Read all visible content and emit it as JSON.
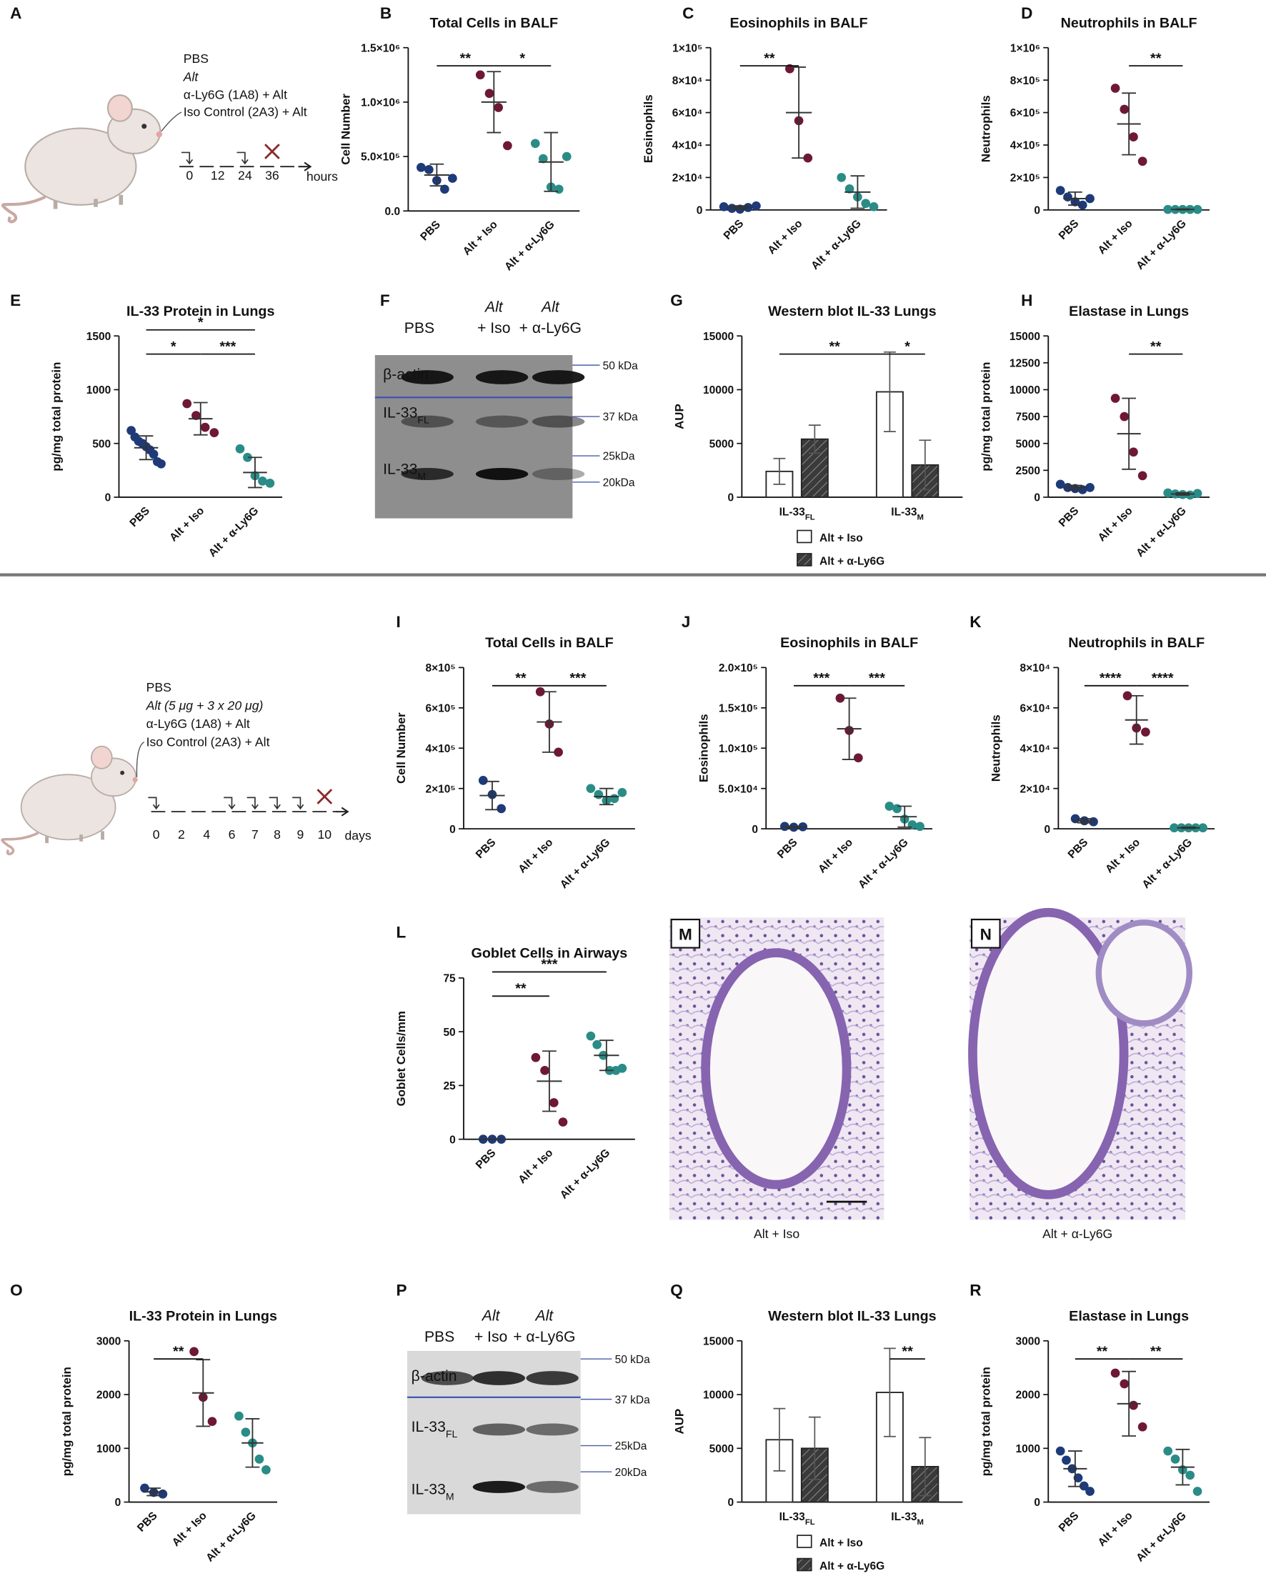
{
  "chart_data": [
    {
      "type": "dotplot",
      "label": "B",
      "title": "Total Cells in BALF",
      "ylabel": "Cell Number",
      "ylim": [
        0,
        1500000
      ],
      "yticks": [
        {
          "value": 0,
          "label": "0.0"
        },
        {
          "value": 500000,
          "label": "5.0×10⁵"
        },
        {
          "value": 1000000,
          "label": "1.0×10⁶"
        },
        {
          "value": 1500000,
          "label": "1.5×10⁶"
        }
      ],
      "series": [
        {
          "name": "PBS",
          "color": "#1e3a78",
          "values": [
            400000,
            380000,
            280000,
            200000,
            300000
          ],
          "mean": 330000,
          "sd": 100000
        },
        {
          "name": "Alt + Iso",
          "color": "#6e1836",
          "values": [
            1250000,
            1080000,
            950000,
            600000
          ],
          "mean": 1000000,
          "sd": 280000
        },
        {
          "name": "Alt + α-Ly6G",
          "color": "#2a8c86",
          "values": [
            620000,
            480000,
            220000,
            200000,
            500000
          ],
          "mean": 450000,
          "sd": 270000
        }
      ],
      "annotations": [
        {
          "text": "**",
          "pair": [
            0,
            1
          ]
        },
        {
          "text": "*",
          "pair": [
            1,
            2
          ]
        }
      ]
    },
    {
      "type": "dotplot",
      "label": "C",
      "title": "Eosinophils in BALF",
      "ylabel": "Eosinophils",
      "ylim": [
        0,
        100000
      ],
      "yticks": [
        0,
        {
          "value": 20000,
          "label": "2×10⁴"
        },
        {
          "value": 40000,
          "label": "4×10⁴"
        },
        {
          "value": 60000,
          "label": "6×10⁴"
        },
        {
          "value": 80000,
          "label": "8×10⁴"
        },
        {
          "value": 100000,
          "label": "1×10⁵"
        }
      ],
      "series": [
        {
          "name": "PBS",
          "color": "#1e3a78",
          "values": [
            2000,
            1000,
            500,
            1500,
            2500
          ],
          "mean": 1500,
          "sd": 1000
        },
        {
          "name": "Alt + Iso",
          "color": "#6e1836",
          "values": [
            87000,
            55000,
            32000
          ],
          "mean": 60000,
          "sd": 28000
        },
        {
          "name": "Alt + α-Ly6G",
          "color": "#2a8c86",
          "values": [
            20000,
            13000,
            8000,
            4000,
            2000
          ],
          "mean": 11000,
          "sd": 10000
        }
      ],
      "annotations": [
        {
          "text": "**",
          "pair": [
            0,
            1
          ]
        }
      ]
    },
    {
      "type": "dotplot",
      "label": "D",
      "title": "Neutrophils in BALF",
      "ylabel": "Neutrophils",
      "ylim": [
        0,
        1000000
      ],
      "yticks": [
        0,
        {
          "value": 200000,
          "label": "2×10⁵"
        },
        {
          "value": 400000,
          "label": "4×10⁵"
        },
        {
          "value": 600000,
          "label": "6×10⁵"
        },
        {
          "value": 800000,
          "label": "8×10⁵"
        },
        {
          "value": 1000000,
          "label": "1×10⁶"
        }
      ],
      "series": [
        {
          "name": "PBS",
          "color": "#1e3a78",
          "values": [
            120000,
            80000,
            50000,
            30000,
            70000
          ],
          "mean": 70000,
          "sd": 40000
        },
        {
          "name": "Alt + Iso",
          "color": "#6e1836",
          "values": [
            750000,
            620000,
            450000,
            300000
          ],
          "mean": 530000,
          "sd": 190000
        },
        {
          "name": "Alt + α-Ly6G",
          "color": "#2a8c86",
          "values": [
            3000,
            3000,
            3000,
            3000,
            3000
          ],
          "mean": 3000,
          "sd": 2000
        }
      ],
      "annotations": [
        {
          "text": "**",
          "pair": [
            1,
            2
          ]
        }
      ]
    },
    {
      "type": "dotplot",
      "label": "E",
      "title": "IL-33 Protein in Lungs",
      "ylabel": "pg/mg total protein",
      "ylim": [
        0,
        1500
      ],
      "yticks": [
        0,
        500,
        1000,
        1500
      ],
      "series": [
        {
          "name": "PBS",
          "color": "#1e3a78",
          "values": [
            620,
            560,
            520,
            500,
            470,
            440,
            400,
            330,
            310
          ],
          "mean": 460,
          "sd": 110
        },
        {
          "name": "Alt + Iso",
          "color": "#6e1836",
          "values": [
            870,
            760,
            650,
            600
          ],
          "mean": 730,
          "sd": 150
        },
        {
          "name": "Alt + α-Ly6G",
          "color": "#2a8c86",
          "values": [
            450,
            370,
            200,
            150,
            130
          ],
          "mean": 230,
          "sd": 140
        }
      ],
      "annotations": [
        {
          "text": "*",
          "pair": [
            0,
            1
          ]
        },
        {
          "text": "***",
          "pair": [
            1,
            2
          ]
        },
        {
          "text": "*",
          "pair": [
            0,
            2
          ]
        }
      ]
    },
    {
      "type": "bar",
      "label": "G",
      "title": "Western blot IL-33 Lungs",
      "ylabel": "AUP",
      "ylim": [
        0,
        15000
      ],
      "yticks": [
        0,
        5000,
        10000,
        15000
      ],
      "categories": [
        "IL-33",
        "IL-33"
      ],
      "category_subscripts": [
        "FL",
        "M"
      ],
      "series": [
        {
          "name": "Alt + Iso",
          "color": "#ffffff",
          "values": [
            2400,
            9800
          ],
          "errors": [
            1200,
            3700
          ]
        },
        {
          "name": "Alt + α-Ly6G",
          "color": "#3a3a3a",
          "pattern": "hatched",
          "values": [
            5400,
            3000
          ],
          "errors": [
            1300,
            2300
          ]
        }
      ],
      "annotations": [
        {
          "text": "**",
          "pair": [
            [
              0,
              0
            ],
            [
              0,
              1
            ]
          ]
        },
        {
          "text": "*",
          "pair": [
            [
              0,
              1
            ],
            [
              1,
              1
            ]
          ]
        }
      ]
    },
    {
      "type": "dotplot",
      "label": "H",
      "title": "Elastase in Lungs",
      "ylabel": "pg/mg total protein",
      "ylim": [
        0,
        15000
      ],
      "yticks": [
        0,
        2500,
        5000,
        7500,
        10000,
        12500,
        15000
      ],
      "series": [
        {
          "name": "PBS",
          "color": "#1e3a78",
          "values": [
            1200,
            900,
            800,
            700,
            900
          ],
          "mean": 900,
          "sd": 200
        },
        {
          "name": "Alt + Iso",
          "color": "#6e1836",
          "values": [
            9200,
            7500,
            4200,
            2000
          ],
          "mean": 5900,
          "sd": 3300
        },
        {
          "name": "Alt + α-Ly6G",
          "color": "#2a8c86",
          "values": [
            400,
            300,
            250,
            200,
            350
          ],
          "mean": 300,
          "sd": 100
        }
      ],
      "annotations": [
        {
          "text": "**",
          "pair": [
            1,
            2
          ]
        }
      ]
    },
    {
      "type": "dotplot",
      "label": "I",
      "title": "Total Cells in BALF",
      "ylabel": "Cell Number",
      "ylim": [
        0,
        800000
      ],
      "yticks": [
        0,
        {
          "value": 200000,
          "label": "2×10⁵"
        },
        {
          "value": 400000,
          "label": "4×10⁵"
        },
        {
          "value": 600000,
          "label": "6×10⁵"
        },
        {
          "value": 800000,
          "label": "8×10⁵"
        }
      ],
      "series": [
        {
          "name": "PBS",
          "color": "#1e3a78",
          "values": [
            240000,
            170000,
            100000
          ],
          "mean": 165000,
          "sd": 70000
        },
        {
          "name": "Alt + Iso",
          "color": "#6e1836",
          "values": [
            680000,
            520000,
            380000
          ],
          "mean": 530000,
          "sd": 150000
        },
        {
          "name": "Alt + α-Ly6G",
          "color": "#2a8c86",
          "values": [
            200000,
            170000,
            140000,
            150000,
            180000
          ],
          "mean": 160000,
          "sd": 40000
        }
      ],
      "annotations": [
        {
          "text": "**",
          "pair": [
            0,
            1
          ]
        },
        {
          "text": "***",
          "pair": [
            1,
            2
          ]
        }
      ]
    },
    {
      "type": "dotplot",
      "label": "J",
      "title": "Eosinophils in BALF",
      "ylabel": "Eosinophils",
      "ylim": [
        0,
        200000
      ],
      "yticks": [
        0,
        {
          "value": 50000,
          "label": "5.0×10⁴"
        },
        {
          "value": 100000,
          "label": "1.0×10⁵"
        },
        {
          "value": 150000,
          "label": "1.5×10⁵"
        },
        {
          "value": 200000,
          "label": "2.0×10⁵"
        }
      ],
      "series": [
        {
          "name": "PBS",
          "color": "#1e3a78",
          "values": [
            3000,
            2000,
            2500
          ],
          "mean": 2000,
          "sd": 1000
        },
        {
          "name": "Alt + Iso",
          "color": "#6e1836",
          "values": [
            162000,
            122000,
            88000
          ],
          "mean": 124000,
          "sd": 38000
        },
        {
          "name": "Alt + α-Ly6G",
          "color": "#2a8c86",
          "values": [
            28000,
            25000,
            12000,
            5000,
            3000
          ],
          "mean": 15000,
          "sd": 13000
        }
      ],
      "annotations": [
        {
          "text": "***",
          "pair": [
            0,
            1
          ]
        },
        {
          "text": "***",
          "pair": [
            1,
            2
          ]
        }
      ]
    },
    {
      "type": "dotplot",
      "label": "K",
      "title": "Neutrophils in BALF",
      "ylabel": "Neutrophils",
      "ylim": [
        0,
        80000
      ],
      "yticks": [
        0,
        {
          "value": 20000,
          "label": "2×10⁴"
        },
        {
          "value": 40000,
          "label": "4×10⁴"
        },
        {
          "value": 60000,
          "label": "6×10⁴"
        },
        {
          "value": 80000,
          "label": "8×10⁴"
        }
      ],
      "series": [
        {
          "name": "PBS",
          "color": "#1e3a78",
          "values": [
            5000,
            4000,
            3500
          ],
          "mean": 4000,
          "sd": 1000
        },
        {
          "name": "Alt + Iso",
          "color": "#6e1836",
          "values": [
            66000,
            50000,
            48000
          ],
          "mean": 54000,
          "sd": 12000
        },
        {
          "name": "Alt + α-Ly6G",
          "color": "#2a8c86",
          "values": [
            500,
            500,
            500,
            500,
            500
          ],
          "mean": 500,
          "sd": 300
        }
      ],
      "annotations": [
        {
          "text": "****",
          "pair": [
            0,
            1
          ]
        },
        {
          "text": "****",
          "pair": [
            1,
            2
          ]
        }
      ]
    },
    {
      "type": "dotplot",
      "label": "L",
      "title": "Goblet Cells in Airways",
      "ylabel": "Goblet Cells/mm",
      "ylim": [
        0,
        75
      ],
      "yticks": [
        0,
        25,
        50,
        75
      ],
      "series": [
        {
          "name": "PBS",
          "color": "#1e3a78",
          "values": [
            0,
            0,
            0
          ],
          "mean": 0,
          "sd": 0
        },
        {
          "name": "Alt + Iso",
          "color": "#6e1836",
          "values": [
            38,
            32,
            17,
            8
          ],
          "mean": 27,
          "sd": 14
        },
        {
          "name": "Alt + α-Ly6G",
          "color": "#2a8c86",
          "values": [
            48,
            44,
            39,
            32,
            32,
            33
          ],
          "mean": 39,
          "sd": 7
        }
      ],
      "annotations": [
        {
          "text": "**",
          "pair": [
            0,
            1
          ]
        },
        {
          "text": "***",
          "pair": [
            0,
            2
          ]
        }
      ]
    },
    {
      "type": "dotplot",
      "label": "O",
      "title": "IL-33 Protein in Lungs",
      "ylabel": "pg/mg total protein",
      "ylim": [
        0,
        3000
      ],
      "yticks": [
        0,
        1000,
        2000,
        3000
      ],
      "series": [
        {
          "name": "PBS",
          "color": "#1e3a78",
          "values": [
            260,
            180,
            150
          ],
          "mean": 190,
          "sd": 70
        },
        {
          "name": "Alt + Iso",
          "color": "#6e1836",
          "values": [
            2800,
            1950,
            1500
          ],
          "mean": 2030,
          "sd": 620
        },
        {
          "name": "Alt + α-Ly6G",
          "color": "#2a8c86",
          "values": [
            1600,
            1300,
            1100,
            800,
            600
          ],
          "mean": 1100,
          "sd": 450
        }
      ],
      "annotations": [
        {
          "text": "**",
          "pair": [
            0,
            1
          ]
        }
      ]
    },
    {
      "type": "bar",
      "label": "Q",
      "title": "Western blot IL-33 Lungs",
      "ylabel": "AUP",
      "ylim": [
        0,
        15000
      ],
      "yticks": [
        0,
        5000,
        10000,
        15000
      ],
      "categories": [
        "IL-33",
        "IL-33"
      ],
      "category_subscripts": [
        "FL",
        "M"
      ],
      "series": [
        {
          "name": "Alt + Iso",
          "color": "#ffffff",
          "values": [
            5800,
            10200
          ],
          "errors": [
            2900,
            4100
          ]
        },
        {
          "name": "Alt + α-Ly6G",
          "color": "#3a3a3a",
          "pattern": "hatched",
          "values": [
            5000,
            3300
          ],
          "errors": [
            2900,
            2700
          ]
        }
      ],
      "annotations": [
        {
          "text": "**",
          "pair": [
            [
              0,
              1
            ],
            [
              1,
              1
            ]
          ]
        }
      ]
    },
    {
      "type": "dotplot",
      "label": "R",
      "title": "Elastase in Lungs",
      "ylabel": "pg/mg total protein",
      "ylim": [
        0,
        3000
      ],
      "yticks": [
        0,
        1000,
        2000,
        3000
      ],
      "series": [
        {
          "name": "PBS",
          "color": "#1e3a78",
          "values": [
            950,
            780,
            620,
            450,
            300,
            200
          ],
          "mean": 620,
          "sd": 330
        },
        {
          "name": "Alt + Iso",
          "color": "#6e1836",
          "values": [
            2400,
            2200,
            1800,
            1400
          ],
          "mean": 1830,
          "sd": 600
        },
        {
          "name": "Alt + α-Ly6G",
          "color": "#2a8c86",
          "values": [
            950,
            800,
            600,
            500,
            200
          ],
          "mean": 650,
          "sd": 330
        }
      ],
      "annotations": [
        {
          "text": "**",
          "pair": [
            0,
            1
          ]
        },
        {
          "text": "**",
          "pair": [
            1,
            2
          ]
        }
      ]
    }
  ],
  "schematics": [
    {
      "label": "A",
      "treatments": [
        "PBS",
        "Alt",
        "α-Ly6G (1A8) + Alt",
        "Iso Control (2A3) + Alt"
      ],
      "timeline": [
        "0",
        "12",
        "24",
        "36"
      ],
      "unit": "hours"
    },
    {
      "treatments": [
        "PBS",
        "Alt (5 μg + 3 x 20 μg)",
        "α-Ly6G (1A8) + Alt",
        "Iso Control (2A3) + Alt"
      ],
      "timeline": [
        "0",
        "2",
        "4",
        "6",
        "7",
        "8",
        "9",
        "10"
      ],
      "unit": "days"
    }
  ],
  "blots": [
    {
      "label": "F",
      "headers": [
        [
          "PBS"
        ],
        [
          "Alt",
          "+ Iso"
        ],
        [
          "Alt",
          "+ α-Ly6G"
        ]
      ],
      "bands": [
        {
          "main": "β-actin"
        },
        {
          "main": "IL-33",
          "sub": "FL"
        },
        {
          "main": "IL-33",
          "sub": "M"
        }
      ],
      "markers": [
        "50 kDa",
        "37 kDa",
        "25kDa",
        "20kDa"
      ]
    },
    {
      "label": "P",
      "headers": [
        [
          "PBS"
        ],
        [
          "Alt",
          "+ Iso"
        ],
        [
          "Alt",
          "+ α-Ly6G"
        ]
      ],
      "bands": [
        {
          "main": "β-actin"
        },
        {
          "main": "IL-33",
          "sub": "FL"
        },
        {
          "main": "IL-33",
          "sub": "M"
        }
      ],
      "markers": [
        "50 kDa",
        "37 kDa",
        "25kDa",
        "20kDa"
      ]
    }
  ],
  "histology": [
    {
      "label": "M",
      "caption": "Alt + Iso"
    },
    {
      "label": "N",
      "caption": "Alt + α-Ly6G"
    }
  ]
}
